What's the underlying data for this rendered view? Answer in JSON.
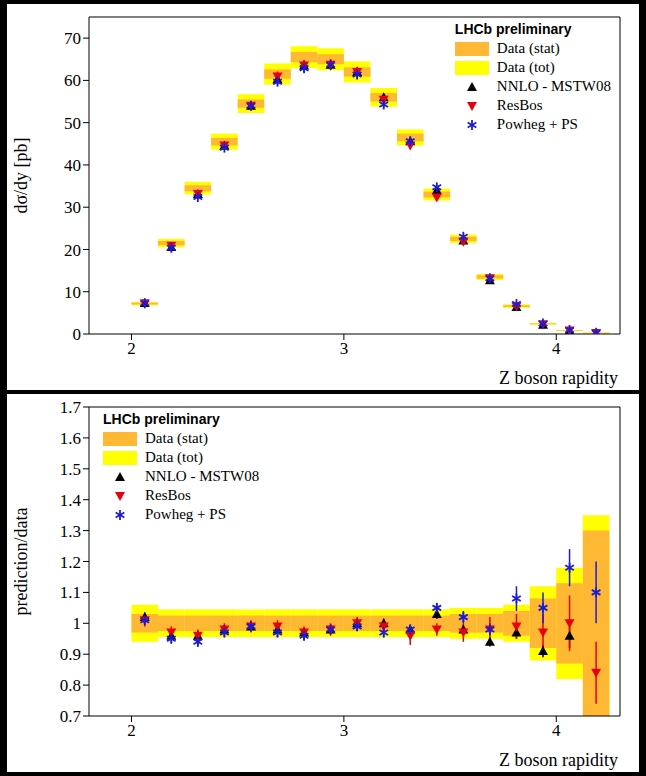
{
  "chart_data": [
    {
      "type": "scatter",
      "annotations": [
        "LHCb preliminary"
      ],
      "x_label": "Z boson rapidity",
      "y_label": "dσ/dy [pb]",
      "legend": "top right",
      "xlim": [
        1.8,
        4.3
      ],
      "xticks": [
        2,
        3,
        4
      ],
      "ylim": [
        0,
        75
      ],
      "yticks": [
        0,
        10,
        20,
        30,
        40,
        50,
        60,
        70
      ],
      "bins": [
        2.0,
        2.125,
        2.25,
        2.375,
        2.5,
        2.625,
        2.75,
        2.875,
        3.0,
        3.125,
        3.25,
        3.375,
        3.5,
        3.625,
        3.75,
        3.875,
        4.0,
        4.125,
        4.25
      ],
      "x": [
        2.0625,
        2.1875,
        2.3125,
        2.4375,
        2.5625,
        2.6875,
        2.8125,
        2.9375,
        3.0625,
        3.1875,
        3.3125,
        3.4375,
        3.5625,
        3.6875,
        3.8125,
        3.9375,
        4.0625,
        4.1875
      ],
      "bands": [
        {
          "name": "Data (stat)",
          "color": "#ffb833",
          "values": [
            7.2,
            21.5,
            34.5,
            45.5,
            54.5,
            61.5,
            65.5,
            65,
            62,
            56,
            46.5,
            33,
            22.5,
            13.5,
            6.6,
            2.4,
            0.8,
            0.25
          ],
          "errors": [
            0.2,
            0.5,
            0.7,
            0.9,
            1.0,
            1.1,
            1.2,
            1.2,
            1.1,
            1.0,
            0.9,
            0.7,
            0.5,
            0.4,
            0.2,
            0.1,
            0.08,
            0.06
          ]
        },
        {
          "name": "Data (tot)",
          "color": "#ffff00",
          "values": [
            7.2,
            21.5,
            34.5,
            45.5,
            54.5,
            61.5,
            65.5,
            65,
            62,
            56,
            46.5,
            33,
            22.5,
            13.5,
            6.6,
            2.4,
            0.8,
            0.25
          ],
          "errors": [
            0.4,
            1.0,
            1.5,
            1.9,
            2.2,
            2.5,
            2.6,
            2.6,
            2.5,
            2.2,
            1.9,
            1.4,
            1.0,
            0.7,
            0.4,
            0.2,
            0.12,
            0.09
          ]
        }
      ],
      "series": [
        {
          "name": "NNLO - MSTW08",
          "color": "#000000",
          "marker": "triangle-up",
          "values": [
            7.34,
            20.6,
            33.1,
            44.6,
            54.0,
            60.3,
            63.5,
            63.7,
            62.0,
            56.0,
            45.6,
            34.0,
            22.1,
            12.7,
            6.4,
            2.2,
            0.77,
            null
          ],
          "errors": [
            0.1,
            0.3,
            0.4,
            0.5,
            0.6,
            0.7,
            0.7,
            0.7,
            0.7,
            0.6,
            0.5,
            0.4,
            0.3,
            0.2,
            0.1,
            0.05,
            0.03,
            null
          ]
        },
        {
          "name": "ResBos",
          "color": "#e8000b",
          "marker": "triangle-down",
          "values": [
            7.27,
            20.9,
            33.1,
            44.6,
            54.0,
            60.9,
            63.5,
            63.7,
            62.0,
            55.4,
            44.6,
            32.3,
            21.8,
            13.2,
            6.5,
            2.3,
            0.8,
            0.21
          ],
          "errors": [
            0.15,
            0.4,
            0.7,
            0.9,
            1.1,
            1.2,
            1.3,
            1.3,
            1.2,
            1.1,
            0.9,
            0.7,
            0.5,
            0.3,
            0.2,
            0.1,
            0.05,
            0.03
          ]
        },
        {
          "name": "Powheg + PS",
          "color": "#1c1cd6",
          "marker": "star",
          "values": [
            7.27,
            20.4,
            32.4,
            44.1,
            54.0,
            59.7,
            62.9,
            63.7,
            61.4,
            54.3,
            45.6,
            34.7,
            23.0,
            13.2,
            7.1,
            2.5,
            0.94,
            0.28
          ],
          "errors": [
            0.1,
            0.3,
            0.5,
            0.6,
            0.8,
            0.9,
            0.9,
            0.9,
            0.9,
            0.8,
            0.7,
            0.5,
            0.4,
            0.3,
            0.15,
            0.1,
            0.06,
            0.04
          ]
        }
      ]
    },
    {
      "type": "scatter",
      "annotations": [
        "LHCb preliminary"
      ],
      "x_label": "Z boson rapidity",
      "y_label": "prediction/data",
      "legend": "top left",
      "xlim": [
        1.8,
        4.3
      ],
      "xticks": [
        2,
        3,
        4
      ],
      "ylim": [
        0.7,
        1.7
      ],
      "yticks": [
        0.7,
        0.8,
        0.9,
        1,
        1.1,
        1.2,
        1.3,
        1.4,
        1.5,
        1.6,
        1.7
      ],
      "bins": [
        2.0,
        2.125,
        2.25,
        2.375,
        2.5,
        2.625,
        2.75,
        2.875,
        3.0,
        3.125,
        3.25,
        3.375,
        3.5,
        3.625,
        3.75,
        3.875,
        4.0,
        4.125,
        4.25
      ],
      "x": [
        2.0625,
        2.1875,
        2.3125,
        2.4375,
        2.5625,
        2.6875,
        2.8125,
        2.9375,
        3.0625,
        3.1875,
        3.3125,
        3.4375,
        3.5625,
        3.6875,
        3.8125,
        3.9375,
        4.0625,
        4.1875
      ],
      "bands": [
        {
          "name": "Data (stat)",
          "color": "#ffb833",
          "values": [
            1,
            1,
            1,
            1,
            1,
            1,
            1,
            1,
            1,
            1,
            1,
            1,
            1,
            1,
            1,
            1,
            1,
            1
          ],
          "errors": [
            0.03,
            0.025,
            0.025,
            0.025,
            0.025,
            0.025,
            0.025,
            0.025,
            0.025,
            0.025,
            0.025,
            0.025,
            0.03,
            0.03,
            0.04,
            0.08,
            0.13,
            0.3
          ]
        },
        {
          "name": "Data (tot)",
          "color": "#ffff00",
          "values": [
            1,
            1,
            1,
            1,
            1,
            1,
            1,
            1,
            1,
            1,
            1,
            1,
            1,
            1,
            1,
            1,
            1,
            1
          ],
          "errors": [
            0.06,
            0.045,
            0.045,
            0.045,
            0.045,
            0.045,
            0.045,
            0.045,
            0.045,
            0.045,
            0.045,
            0.045,
            0.05,
            0.05,
            0.06,
            0.12,
            0.18,
            0.35
          ]
        }
      ],
      "series": [
        {
          "name": "NNLO - MSTW08",
          "color": "#000000",
          "marker": "triangle-up",
          "values": [
            1.02,
            0.96,
            0.96,
            0.98,
            0.99,
            0.98,
            0.97,
            0.98,
            1.0,
            1.0,
            0.98,
            1.03,
            0.98,
            0.94,
            0.97,
            0.91,
            0.96,
            null
          ],
          "errors": [
            0.015,
            0.015,
            0.015,
            0.015,
            0.015,
            0.015,
            0.015,
            0.015,
            0.015,
            0.015,
            0.015,
            0.015,
            0.015,
            0.015,
            0.02,
            0.02,
            0.04,
            null
          ]
        },
        {
          "name": "ResBos",
          "color": "#e8000b",
          "marker": "triangle-down",
          "values": [
            1.01,
            0.97,
            0.96,
            0.98,
            0.99,
            0.99,
            0.97,
            0.98,
            1.0,
            0.99,
            0.96,
            0.98,
            0.97,
            0.98,
            0.99,
            0.97,
            1.0,
            0.84
          ],
          "errors": [
            0.02,
            0.02,
            0.02,
            0.02,
            0.02,
            0.02,
            0.02,
            0.02,
            0.02,
            0.02,
            0.03,
            0.02,
            0.03,
            0.04,
            0.04,
            0.06,
            0.09,
            0.1
          ]
        },
        {
          "name": "Powheg + PS",
          "color": "#1c1cd6",
          "marker": "star",
          "values": [
            1.01,
            0.95,
            0.94,
            0.97,
            0.99,
            0.97,
            0.96,
            0.98,
            0.99,
            0.97,
            0.98,
            1.05,
            1.02,
            0.98,
            1.08,
            1.05,
            1.18,
            1.1
          ],
          "errors": [
            0.015,
            0.015,
            0.015,
            0.015,
            0.015,
            0.015,
            0.015,
            0.015,
            0.015,
            0.015,
            0.015,
            0.015,
            0.02,
            0.02,
            0.04,
            0.05,
            0.06,
            0.1
          ]
        }
      ]
    }
  ]
}
